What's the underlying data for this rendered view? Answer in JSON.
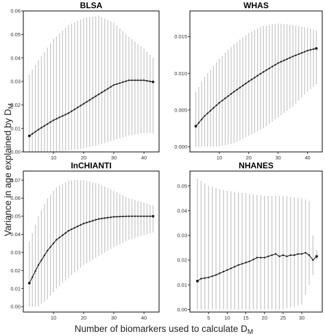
{
  "figure": {
    "xlabel": "Number of biomarkers used to calculate D",
    "xlabel_subscript": "M",
    "ylabel": "Variance in age explained by D",
    "ylabel_subscript": "M",
    "colors": {
      "errorbar": "#c8c8c8",
      "line": "#1a1a1a",
      "frame": "#000000"
    }
  },
  "chart_data": [
    {
      "type": "line",
      "title": "BLSA",
      "xlim": [
        0,
        45
      ],
      "ylim": [
        0,
        0.06
      ],
      "xticks": [
        10,
        20,
        30,
        40
      ],
      "yticks": [
        0,
        0.01,
        0.02,
        0.03,
        0.04,
        0.05,
        0.06
      ],
      "ytick_labels": [
        "0.00",
        "0.01",
        "0.02",
        "0.03",
        "0.04",
        "0.05",
        "0.06"
      ],
      "x_start": 2,
      "x_end": 43,
      "mean_pts": [
        [
          2,
          0.0068
        ],
        [
          5,
          0.0095
        ],
        [
          10,
          0.0135
        ],
        [
          15,
          0.0165
        ],
        [
          20,
          0.0205
        ],
        [
          25,
          0.0245
        ],
        [
          30,
          0.0285
        ],
        [
          35,
          0.0305
        ],
        [
          40,
          0.0305
        ],
        [
          43,
          0.0298
        ]
      ],
      "upper_pts": [
        [
          2,
          0.033
        ],
        [
          5,
          0.039
        ],
        [
          10,
          0.048
        ],
        [
          15,
          0.054
        ],
        [
          20,
          0.057
        ],
        [
          25,
          0.058
        ],
        [
          30,
          0.055
        ],
        [
          35,
          0.049
        ],
        [
          40,
          0.044
        ],
        [
          43,
          0.04
        ]
      ],
      "lower_pts": [
        [
          2,
          0.0
        ],
        [
          10,
          0.0
        ],
        [
          15,
          0.0005
        ],
        [
          20,
          0.0015
        ],
        [
          25,
          0.003
        ],
        [
          30,
          0.005
        ],
        [
          35,
          0.007
        ],
        [
          40,
          0.008
        ],
        [
          43,
          0.008
        ]
      ]
    },
    {
      "type": "line",
      "title": "WHAS",
      "xlim": [
        0,
        45
      ],
      "ylim": [
        -0.0007,
        0.0185
      ],
      "xticks": [
        10,
        20,
        30,
        40
      ],
      "yticks": [
        0,
        0.005,
        0.01,
        0.015
      ],
      "ytick_labels": [
        "0.000",
        "0.005",
        "0.010",
        "0.015"
      ],
      "x_start": 2,
      "x_end": 43,
      "mean_pts": [
        [
          2,
          0.0028
        ],
        [
          5,
          0.0042
        ],
        [
          10,
          0.006
        ],
        [
          15,
          0.0075
        ],
        [
          20,
          0.0089
        ],
        [
          25,
          0.0102
        ],
        [
          30,
          0.0114
        ],
        [
          35,
          0.0123
        ],
        [
          40,
          0.0131
        ],
        [
          43,
          0.0134
        ]
      ],
      "upper_pts": [
        [
          2,
          0.0075
        ],
        [
          5,
          0.0095
        ],
        [
          10,
          0.012
        ],
        [
          15,
          0.014
        ],
        [
          20,
          0.0155
        ],
        [
          25,
          0.0165
        ],
        [
          30,
          0.0168
        ],
        [
          35,
          0.0166
        ],
        [
          40,
          0.0162
        ],
        [
          43,
          0.0158
        ]
      ],
      "lower_pts": [
        [
          2,
          0.0
        ],
        [
          10,
          0.0
        ],
        [
          15,
          0.0005
        ],
        [
          20,
          0.0015
        ],
        [
          25,
          0.0025
        ],
        [
          30,
          0.004
        ],
        [
          35,
          0.0055
        ],
        [
          40,
          0.0075
        ],
        [
          43,
          0.0085
        ]
      ]
    },
    {
      "type": "line",
      "title": "InCHIANTI",
      "xlim": [
        0,
        45
      ],
      "ylim": [
        -0.003,
        0.075
      ],
      "xticks": [
        10,
        20,
        30,
        40
      ],
      "yticks": [
        0,
        0.01,
        0.02,
        0.03,
        0.04,
        0.05,
        0.06,
        0.07
      ],
      "ytick_labels": [
        "0.00",
        "0.01",
        "0.02",
        "0.03",
        "0.04",
        "0.05",
        "0.06",
        "0.07"
      ],
      "x_start": 2,
      "x_end": 43,
      "mean_pts": [
        [
          2,
          0.013
        ],
        [
          5,
          0.023
        ],
        [
          8,
          0.031
        ],
        [
          11,
          0.037
        ],
        [
          15,
          0.042
        ],
        [
          20,
          0.046
        ],
        [
          25,
          0.0485
        ],
        [
          30,
          0.0497
        ],
        [
          35,
          0.05
        ],
        [
          43,
          0.05
        ]
      ],
      "upper_pts": [
        [
          2,
          0.036
        ],
        [
          5,
          0.05
        ],
        [
          8,
          0.06
        ],
        [
          11,
          0.066
        ],
        [
          15,
          0.07
        ],
        [
          20,
          0.07
        ],
        [
          25,
          0.068
        ],
        [
          30,
          0.064
        ],
        [
          35,
          0.06
        ],
        [
          43,
          0.056
        ]
      ],
      "lower_pts": [
        [
          2,
          0.0
        ],
        [
          5,
          0.0
        ],
        [
          8,
          0.004
        ],
        [
          11,
          0.01
        ],
        [
          15,
          0.016
        ],
        [
          20,
          0.023
        ],
        [
          25,
          0.028
        ],
        [
          30,
          0.033
        ],
        [
          35,
          0.037
        ],
        [
          43,
          0.041
        ]
      ]
    },
    {
      "type": "line",
      "title": "NHANES",
      "xlim": [
        0,
        35.5
      ],
      "ylim": [
        -0.001,
        0.056
      ],
      "xticks": [
        5,
        10,
        15,
        20,
        25,
        30
      ],
      "yticks": [
        0,
        0.01,
        0.02,
        0.03,
        0.04,
        0.05
      ],
      "ytick_labels": [
        "0.00",
        "0.01",
        "0.02",
        "0.03",
        "0.04",
        "0.05"
      ],
      "x_start": 2,
      "x_end": 34,
      "mean_pts": [
        [
          2,
          0.0115
        ],
        [
          3,
          0.0125
        ],
        [
          5,
          0.013
        ],
        [
          7,
          0.014
        ],
        [
          10,
          0.016
        ],
        [
          13,
          0.018
        ],
        [
          16,
          0.0195
        ],
        [
          18,
          0.021
        ],
        [
          20,
          0.021
        ],
        [
          22,
          0.022
        ],
        [
          23,
          0.0225
        ],
        [
          24,
          0.0215
        ],
        [
          25,
          0.022
        ],
        [
          26,
          0.0215
        ],
        [
          27,
          0.022
        ],
        [
          28,
          0.022
        ],
        [
          29,
          0.0225
        ],
        [
          30,
          0.0225
        ],
        [
          31,
          0.023
        ],
        [
          32,
          0.022
        ],
        [
          33,
          0.02
        ],
        [
          34,
          0.0215
        ]
      ],
      "upper_pts": [
        [
          2,
          0.053
        ],
        [
          5,
          0.05
        ],
        [
          10,
          0.048
        ],
        [
          15,
          0.047
        ],
        [
          20,
          0.046
        ],
        [
          25,
          0.046
        ],
        [
          30,
          0.045
        ],
        [
          32,
          0.044
        ],
        [
          33,
          0.03
        ],
        [
          34,
          0.024
        ]
      ],
      "lower_pts": [
        [
          2,
          0.0
        ],
        [
          10,
          0.0
        ],
        [
          15,
          0.0
        ],
        [
          20,
          0.0
        ],
        [
          25,
          0.0
        ],
        [
          30,
          0.002
        ],
        [
          33,
          0.014
        ],
        [
          34,
          0.02
        ]
      ]
    }
  ]
}
